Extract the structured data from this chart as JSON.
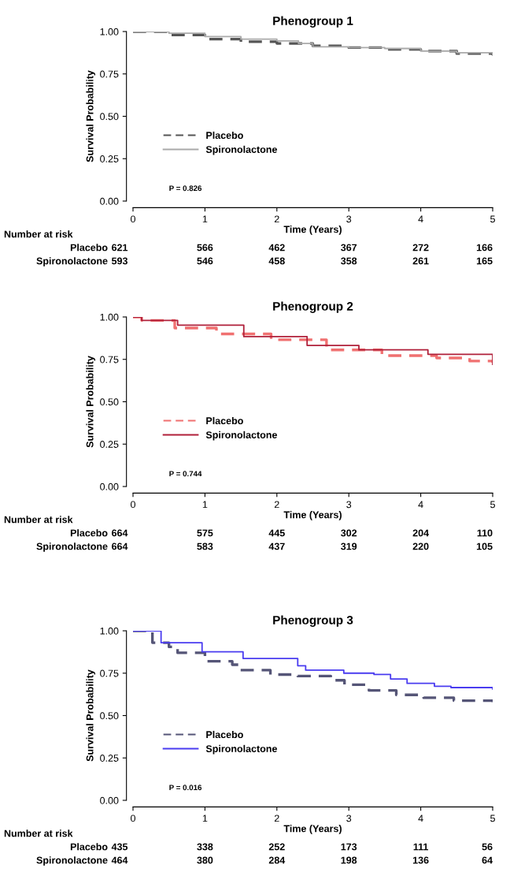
{
  "chart_data": [
    {
      "type": "step",
      "title": "Phenogroup 1",
      "xlabel": "Time (Years)",
      "ylabel": "Survival Probability",
      "xlim": [
        0,
        5
      ],
      "ylim": [
        0,
        1
      ],
      "xticks": [
        0,
        1,
        2,
        3,
        4,
        5
      ],
      "yticks": [
        {
          "value": 0,
          "label": "0.00"
        },
        {
          "value": 0.25,
          "label": "0.25"
        },
        {
          "value": 0.5,
          "label": "0.50"
        },
        {
          "value": 0.75,
          "label": "0.75"
        },
        {
          "value": 1,
          "label": "1.00"
        }
      ],
      "grid": false,
      "legend": "bottom left",
      "series": [
        {
          "name": "Placebo",
          "color": "#555555",
          "line_style": "dashed",
          "x": [
            0,
            0.5,
            1,
            1.5,
            2,
            2.5,
            3,
            3.5,
            4,
            4.5,
            5
          ],
          "values": [
            1.0,
            0.98,
            0.955,
            0.94,
            0.93,
            0.915,
            0.905,
            0.895,
            0.885,
            0.87,
            0.86
          ]
        },
        {
          "name": "Spironolactone",
          "color": "#aaaaaa",
          "line_style": "solid",
          "x": [
            0,
            0.5,
            1,
            1.5,
            2,
            2.3,
            2.5,
            3,
            3.5,
            4,
            4.5,
            5
          ],
          "values": [
            1.0,
            0.99,
            0.97,
            0.955,
            0.945,
            0.93,
            0.91,
            0.905,
            0.9,
            0.885,
            0.875,
            0.86
          ]
        }
      ],
      "annotations": [
        "P = 0.826",
        "Number at risk",
        "Placebo",
        "621",
        "566",
        "462",
        "367",
        "272",
        "166",
        "Spironolactone",
        "593",
        "546",
        "458",
        "358",
        "261",
        "165"
      ]
    },
    {
      "type": "step",
      "title": "Phenogroup 2",
      "xlabel": "Time (Years)",
      "ylabel": "Survival Probability",
      "xlim": [
        0,
        5
      ],
      "ylim": [
        0,
        1
      ],
      "xticks": [
        0,
        1,
        2,
        3,
        4,
        5
      ],
      "yticks": [
        {
          "value": 0,
          "label": "0.00"
        },
        {
          "value": 0.25,
          "label": "0.25"
        },
        {
          "value": 0.5,
          "label": "0.50"
        },
        {
          "value": 0.75,
          "label": "0.75"
        },
        {
          "value": 1,
          "label": "1.00"
        }
      ],
      "grid": false,
      "legend": "bottom left",
      "series": [
        {
          "name": "Placebo",
          "color": "#f07070",
          "line_style": "dashed",
          "x": [
            0,
            0.12,
            0.58,
            1.16,
            1.92,
            2.69,
            3.46,
            4.22,
            4.68,
            5
          ],
          "values": [
            1.0,
            0.98,
            0.935,
            0.9,
            0.866,
            0.806,
            0.772,
            0.758,
            0.74,
            0.73
          ]
        },
        {
          "name": "Spironolactone",
          "color": "#b0203a",
          "line_style": "solid",
          "x": [
            0,
            0.12,
            0.62,
            1.54,
            2.42,
            3.14,
            4.1,
            5
          ],
          "values": [
            1.0,
            0.98,
            0.952,
            0.884,
            0.832,
            0.806,
            0.78,
            0.72
          ]
        }
      ],
      "annotations": [
        "P = 0.744",
        "Number at risk",
        "Placebo",
        "664",
        "575",
        "445",
        "302",
        "204",
        "110",
        "Spironolactone",
        "664",
        "583",
        "437",
        "319",
        "220",
        "105"
      ]
    },
    {
      "type": "step",
      "title": "Phenogroup 3",
      "xlabel": "Time (Years)",
      "ylabel": "Survival Probability",
      "xlim": [
        0,
        5
      ],
      "ylim": [
        0,
        1
      ],
      "xticks": [
        0,
        1,
        2,
        3,
        4,
        5
      ],
      "yticks": [
        {
          "value": 0,
          "label": "0.00"
        },
        {
          "value": 0.25,
          "label": "0.25"
        },
        {
          "value": 0.5,
          "label": "0.50"
        },
        {
          "value": 0.75,
          "label": "0.75"
        },
        {
          "value": 1,
          "label": "1.00"
        }
      ],
      "grid": false,
      "legend": "bottom left",
      "series": [
        {
          "name": "Placebo",
          "color": "#555577",
          "line_style": "dashed",
          "x": [
            0,
            0.27,
            0.5,
            0.62,
            1.0,
            1.38,
            1.49,
            1.91,
            2.29,
            2.75,
            2.94,
            3.28,
            3.66,
            4.04,
            4.46,
            5
          ],
          "values": [
            1.0,
            0.93,
            0.905,
            0.87,
            0.82,
            0.8,
            0.768,
            0.742,
            0.733,
            0.708,
            0.682,
            0.648,
            0.622,
            0.605,
            0.588,
            0.579
          ]
        },
        {
          "name": "Spironolactone",
          "color": "#4a3cf0",
          "line_style": "solid",
          "x": [
            0,
            0.39,
            0.96,
            1.53,
            2.29,
            2.4,
            2.93,
            3.35,
            3.58,
            3.81,
            4.19,
            4.42,
            5
          ],
          "values": [
            1.0,
            0.93,
            0.876,
            0.837,
            0.794,
            0.768,
            0.75,
            0.742,
            0.716,
            0.69,
            0.673,
            0.665,
            0.656
          ]
        }
      ],
      "annotations": [
        "P = 0.016",
        "Number at risk",
        "Placebo",
        "435",
        "338",
        "252",
        "173",
        "111",
        "56",
        "Spironolactone",
        "464",
        "380",
        "284",
        "198",
        "136",
        "64"
      ]
    }
  ]
}
